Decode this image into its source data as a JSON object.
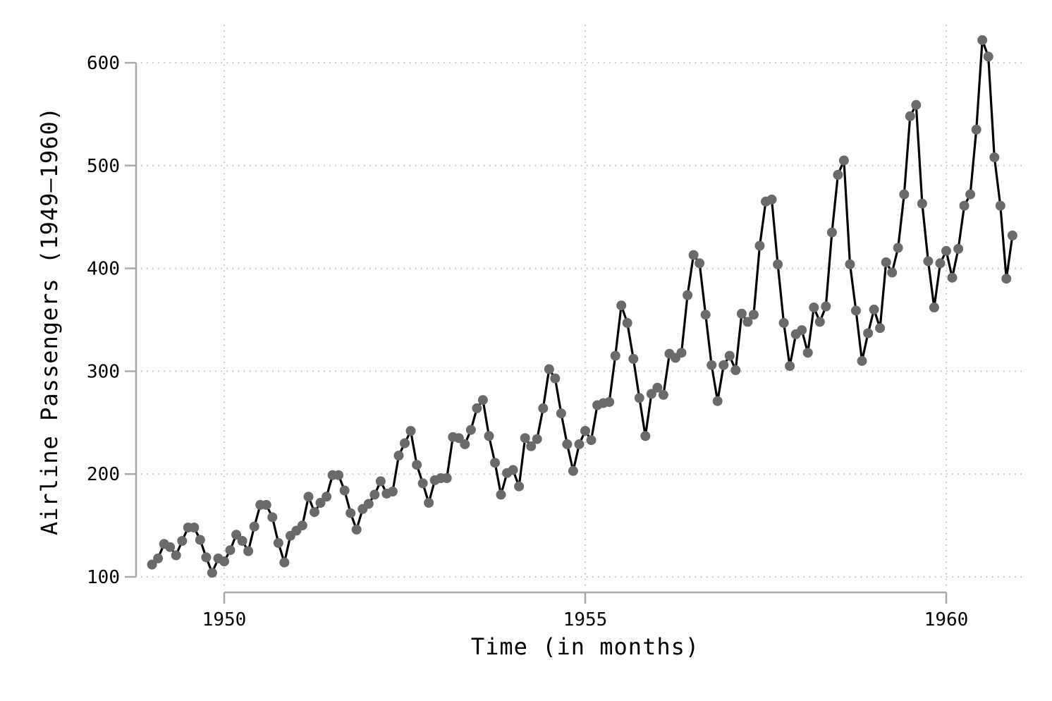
{
  "chart_data": {
    "type": "line",
    "title": "",
    "xlabel": "Time (in months)",
    "ylabel": "Airline Passengers (1949–1960)",
    "x_unit": "monthly",
    "start_year": 1949,
    "end_year": 1960,
    "x_ticks": [
      1950,
      1955,
      1960
    ],
    "x_tick_labels": [
      "1950",
      "1955",
      "1960"
    ],
    "y_ticks": [
      100,
      200,
      300,
      400,
      500,
      600
    ],
    "y_tick_labels": [
      "100",
      "200",
      "300",
      "400",
      "500",
      "600"
    ],
    "y_axis_range": [
      100,
      600
    ],
    "grid": "dotted, horizontal and vertical",
    "legend": "none",
    "marker": "filled-circle",
    "colors": {
      "line": "#000000",
      "marker": "#6a6a6a",
      "axis": "#a8a8a8",
      "grid": "#c4c4c4",
      "text": "#000000",
      "background": "#ffffff"
    },
    "series": [
      {
        "name": "Airline Passengers",
        "values": [
          112,
          118,
          132,
          129,
          121,
          135,
          148,
          148,
          136,
          119,
          104,
          118,
          115,
          126,
          141,
          135,
          125,
          149,
          170,
          170,
          158,
          133,
          114,
          140,
          145,
          150,
          178,
          163,
          172,
          178,
          199,
          199,
          184,
          162,
          146,
          166,
          171,
          180,
          193,
          181,
          183,
          218,
          230,
          242,
          209,
          191,
          172,
          194,
          196,
          196,
          236,
          235,
          229,
          243,
          264,
          272,
          237,
          211,
          180,
          201,
          204,
          188,
          235,
          227,
          234,
          264,
          302,
          293,
          259,
          229,
          203,
          229,
          242,
          233,
          267,
          269,
          270,
          315,
          364,
          347,
          312,
          274,
          237,
          278,
          284,
          277,
          317,
          313,
          318,
          374,
          413,
          405,
          355,
          306,
          271,
          306,
          315,
          301,
          356,
          348,
          355,
          422,
          465,
          467,
          404,
          347,
          305,
          336,
          340,
          318,
          362,
          348,
          363,
          435,
          491,
          505,
          404,
          359,
          310,
          337,
          360,
          342,
          406,
          396,
          420,
          472,
          548,
          559,
          463,
          407,
          362,
          405,
          417,
          391,
          419,
          461,
          472,
          535,
          622,
          606,
          508,
          461,
          390,
          432
        ]
      }
    ]
  }
}
